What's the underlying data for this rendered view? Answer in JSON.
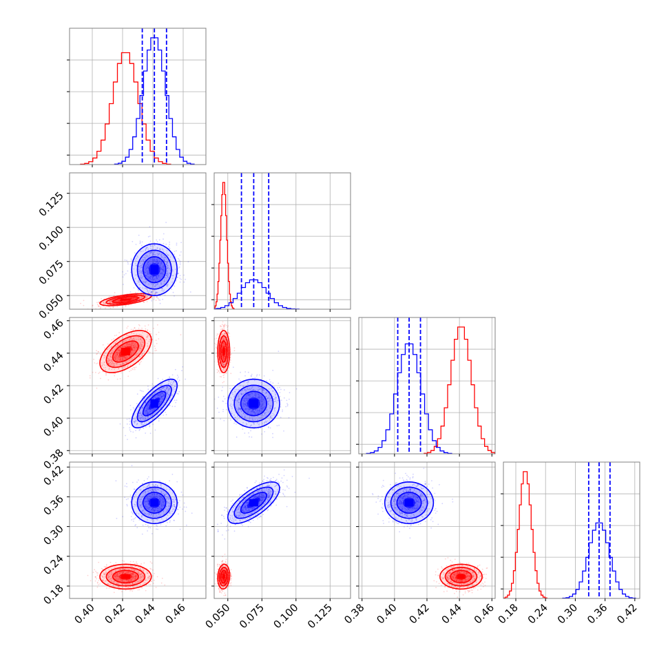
{
  "colors": {
    "red": "#ff0000",
    "blue": "#0000ff",
    "grid": "#b0b0b0",
    "frame": "#808080"
  },
  "chart_data": {
    "type": "corner",
    "parameters": [
      {
        "range": [
          0.385,
          0.475
        ],
        "ticks": [
          0.4,
          0.42,
          0.44,
          0.46
        ],
        "tick_labels": [
          "0.40",
          "0.42",
          "0.44",
          "0.46"
        ]
      },
      {
        "range": [
          0.04,
          0.14
        ],
        "ticks": [
          0.05,
          0.075,
          0.1,
          0.125
        ],
        "tick_labels": [
          "0.050",
          "0.075",
          "0.100",
          "0.125"
        ]
      },
      {
        "range": [
          0.378,
          0.462
        ],
        "ticks": [
          0.38,
          0.4,
          0.42,
          0.44,
          0.46
        ],
        "tick_labels": [
          "0.38",
          "0.40",
          "0.42",
          "0.44",
          "0.46"
        ]
      },
      {
        "range": [
          0.155,
          0.43
        ],
        "ticks": [
          0.18,
          0.24,
          0.3,
          0.36,
          0.42
        ],
        "tick_labels": [
          "0.18",
          "0.24",
          "0.30",
          "0.36",
          "0.42"
        ]
      }
    ],
    "series": [
      {
        "color": "red",
        "mean": [
          0.422,
          0.047,
          0.441,
          0.199
        ],
        "sd": [
          0.0085,
          0.0022,
          0.0065,
          0.0125
        ],
        "corr": [
          [
            0,
            1,
            0.6
          ],
          [
            0,
            2,
            0.55
          ],
          [
            1,
            3,
            0.1
          ]
        ]
      },
      {
        "color": "blue",
        "mean": [
          0.441,
          0.069,
          0.409,
          0.348
        ],
        "sd": [
          0.0075,
          0.0095,
          0.0075,
          0.021
        ],
        "corr": [
          [
            0,
            2,
            0.75
          ],
          [
            1,
            3,
            0.7
          ]
        ]
      }
    ],
    "quantiles_blue": [
      [
        0.433,
        0.441,
        0.449
      ],
      [
        0.06,
        0.069,
        0.08
      ],
      [
        0.402,
        0.409,
        0.416
      ],
      [
        0.327,
        0.348,
        0.37
      ]
    ]
  }
}
